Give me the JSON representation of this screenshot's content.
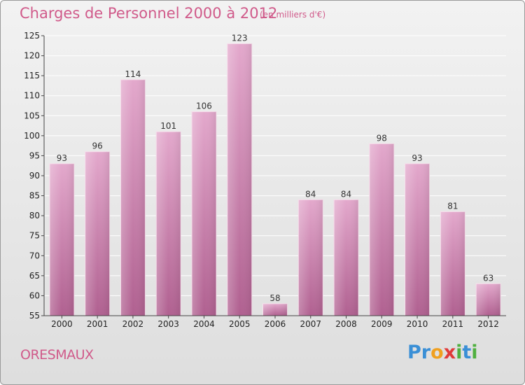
{
  "chart_data": {
    "type": "bar",
    "title": "Charges de Personnel 2000 à 2012",
    "subtitle": "(en milliers d'€)",
    "categories": [
      "2000",
      "2001",
      "2002",
      "2003",
      "2004",
      "2005",
      "2006",
      "2007",
      "2008",
      "2009",
      "2010",
      "2011",
      "2012"
    ],
    "values": [
      93,
      96,
      114,
      101,
      106,
      123,
      58,
      84,
      84,
      98,
      93,
      81,
      63
    ],
    "ylim": [
      55,
      125
    ],
    "yticks": [
      55,
      60,
      65,
      70,
      75,
      80,
      85,
      90,
      95,
      100,
      105,
      110,
      115,
      120,
      125
    ],
    "grid": true,
    "xlabel": "",
    "ylabel": ""
  },
  "commune": "ORESMAUX",
  "logo": {
    "letters": [
      "P",
      "r",
      "o",
      "x",
      "i",
      "t",
      "i"
    ],
    "colors": [
      "#3a8fd6",
      "#3a8fd6",
      "#f0a020",
      "#e03a3a",
      "#50b040",
      "#3a8fd6",
      "#50b040"
    ]
  },
  "colors": {
    "accent": "#d05a8a",
    "bar_top": "#e3a8cc",
    "bar_bottom": "#b06090"
  }
}
